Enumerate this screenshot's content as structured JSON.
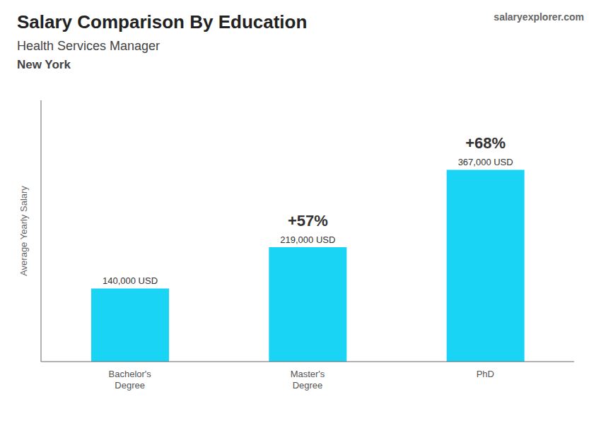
{
  "chart_data": {
    "type": "bar",
    "title": "Salary Comparison By Education",
    "subtitle": "Health Services Manager",
    "ylabel": "Average Yearly Salary",
    "categories": [
      "Bachelor's\nDegree",
      "Master's\nDegree",
      "PhD"
    ],
    "values": [
      140000,
      219000,
      367000
    ],
    "value_labels": [
      "140,000 USD",
      "219,000 USD",
      "367,000 USD"
    ],
    "data_labels": true,
    "color": "#1ad4f5",
    "ylim": [
      0,
      500000
    ],
    "tick_labels": "x",
    "grid": false,
    "annotations": [
      {
        "text": "New York"
      },
      {
        "text": "salaryexplorer.com"
      },
      {
        "text": "+57%",
        "from": "Bachelor's\nDegree",
        "to": "Master's\nDegree"
      },
      {
        "text": "+68%",
        "from": "Master's\nDegree",
        "to": "PhD"
      }
    ]
  }
}
